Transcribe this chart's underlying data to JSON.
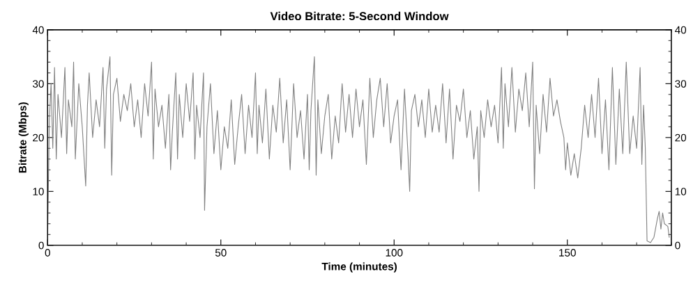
{
  "chart_data": {
    "type": "line",
    "title": "Video Bitrate: 5-Second Window",
    "xlabel": "Time (minutes)",
    "ylabel": "Bitrate (Mbps)",
    "xlim": [
      0,
      180
    ],
    "xticks": [
      0,
      50,
      100,
      150
    ],
    "ylim": [
      0,
      40
    ],
    "yticks": [
      0,
      10,
      20,
      30,
      40
    ],
    "y2lim": [
      0,
      40
    ],
    "y2ticks": [
      0,
      10,
      20,
      30,
      40
    ],
    "grid": false,
    "legend": false,
    "marker": "none",
    "line_style": "solid",
    "series": [
      {
        "color": "#808080",
        "x": [
          0,
          0.5,
          1,
          1.5,
          2,
          2.5,
          3,
          4,
          5,
          5.5,
          6,
          7,
          7.5,
          8,
          9,
          10,
          11,
          11.5,
          12,
          13,
          14,
          15,
          16,
          16.5,
          17,
          18,
          18.5,
          19,
          20,
          21,
          22,
          23,
          24,
          25,
          26,
          27,
          28,
          29,
          30,
          30.5,
          31,
          32,
          33,
          34,
          35,
          35.5,
          36,
          37,
          37.5,
          38,
          39,
          40,
          41,
          42,
          42.5,
          43,
          44,
          45,
          45.3,
          46,
          47,
          48,
          49,
          50,
          51,
          52,
          53,
          54,
          55,
          56,
          57,
          58,
          59,
          60,
          60.5,
          61,
          62,
          63,
          64,
          65,
          66,
          67,
          68,
          69,
          70,
          71,
          72,
          73,
          74,
          75,
          75.5,
          76,
          77,
          77.5,
          78,
          79,
          80,
          81,
          82,
          83,
          84,
          85,
          86,
          87,
          88,
          89,
          90,
          91,
          92,
          93,
          94,
          95,
          96,
          97,
          98,
          99,
          100,
          101,
          102,
          103,
          104,
          104.5,
          105,
          106,
          107,
          108,
          109,
          110,
          111,
          112,
          113,
          114,
          115,
          116,
          117,
          118,
          119,
          120,
          121,
          122,
          123,
          124,
          124.5,
          125,
          126,
          127,
          128,
          129,
          130,
          131,
          131.5,
          132,
          133,
          134,
          135,
          136,
          137,
          138,
          139,
          140,
          140.5,
          141,
          142,
          143,
          144,
          145,
          146,
          147,
          148,
          149,
          149.5,
          150,
          151,
          152,
          153,
          154,
          155,
          156,
          157,
          158,
          159,
          160,
          161,
          162,
          163,
          164,
          165,
          166,
          167,
          168,
          169,
          170,
          171,
          171.5,
          172,
          172.5,
          173,
          174,
          175,
          176,
          176.5,
          177,
          177.5,
          178,
          179,
          179.4
        ],
        "values": [
          1,
          23,
          30,
          18,
          33,
          16,
          28,
          20,
          33,
          17,
          27,
          22,
          34,
          16,
          30,
          22,
          11,
          26,
          32,
          20,
          27,
          22,
          33,
          18,
          29,
          35,
          13,
          28,
          31,
          23,
          28,
          25,
          30,
          22,
          27,
          20,
          30,
          24,
          34,
          16,
          29,
          22,
          26,
          18,
          28,
          14,
          21,
          32,
          16,
          28,
          20,
          30,
          23,
          32,
          16,
          26,
          20,
          32,
          6.5,
          22,
          30,
          17,
          25,
          14,
          22,
          18,
          27,
          15,
          22,
          28,
          17,
          26,
          20,
          32,
          17,
          26,
          19,
          29,
          16,
          26,
          21,
          31,
          19,
          27,
          14,
          30,
          20,
          25,
          16,
          28,
          14,
          25,
          35,
          13,
          27,
          17,
          24,
          28,
          16,
          24,
          19,
          30,
          21,
          28,
          20,
          29,
          22,
          27,
          15,
          31,
          20,
          27,
          31,
          22,
          30,
          19,
          24,
          27,
          14,
          29,
          17,
          10,
          25,
          28,
          22,
          27,
          20,
          29,
          21,
          26,
          21,
          30,
          19,
          29,
          16,
          26,
          23,
          29,
          20,
          25,
          16,
          22,
          10,
          25,
          20,
          27,
          22,
          26,
          19,
          33,
          18,
          30,
          22,
          33,
          21,
          29,
          25,
          32,
          22,
          34,
          10.5,
          26,
          17,
          28,
          21,
          31,
          24,
          27,
          23,
          20,
          14,
          19,
          13,
          17,
          12.5,
          18,
          26,
          20,
          28,
          20,
          31,
          17,
          27,
          14,
          33,
          15,
          29,
          17,
          34,
          17,
          24,
          18,
          33,
          15,
          26,
          18,
          0.8,
          0.5,
          1.5,
          5,
          6.3,
          3,
          6,
          4,
          3.5,
          1.5
        ]
      }
    ]
  }
}
